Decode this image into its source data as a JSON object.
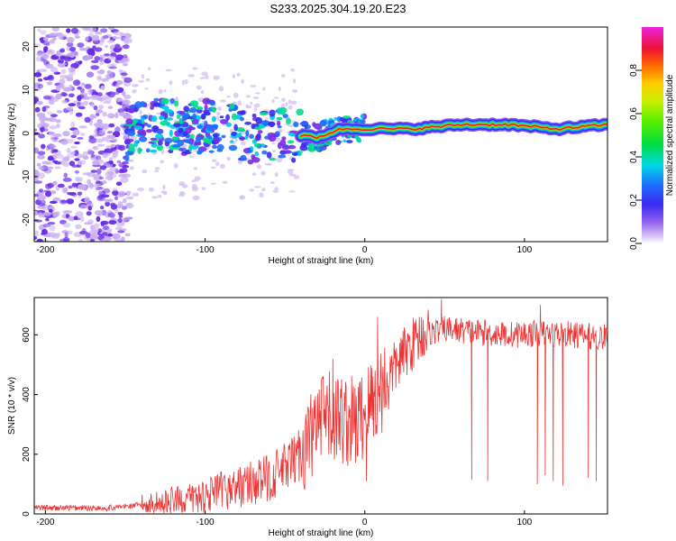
{
  "title": "S233.2025.304.19.20.E23",
  "chart_data": [
    {
      "type": "heatmap",
      "title": "S233.2025.304.19.20.E23",
      "xlabel": "Height of straight line (km)",
      "ylabel": "Frequency (Hz)",
      "xlim": [
        -207,
        152
      ],
      "ylim": [
        -25,
        24.5
      ],
      "xticks": [
        -200,
        -100,
        0,
        100
      ],
      "yticks": [
        -20,
        -10,
        0,
        10,
        20
      ],
      "colorbar": {
        "label": "Normalized spectral amplitude",
        "range": [
          0,
          1
        ],
        "ticks": [
          "0.0",
          "0.2",
          "0.4",
          "0.6",
          "0.8"
        ]
      },
      "ridge": [
        {
          "x": -150,
          "f": 0
        },
        {
          "x": -130,
          "f": 2
        },
        {
          "x": -110,
          "f": 1
        },
        {
          "x": -90,
          "f": 2
        },
        {
          "x": -70,
          "f": -1
        },
        {
          "x": -50,
          "f": 0
        },
        {
          "x": -30,
          "f": -1
        },
        {
          "x": -15,
          "f": 1
        },
        {
          "x": 0,
          "f": 1
        },
        {
          "x": 30,
          "f": 1
        },
        {
          "x": 60,
          "f": 2
        },
        {
          "x": 90,
          "f": 2
        },
        {
          "x": 120,
          "f": 1
        },
        {
          "x": 152,
          "f": 2
        }
      ]
    },
    {
      "type": "line",
      "xlabel": "Height of straight line (km)",
      "ylabel": "SNR (10 * v/v)",
      "xlim": [
        -207,
        152
      ],
      "ylim": [
        0,
        725
      ],
      "xticks": [
        -200,
        -100,
        0,
        100
      ],
      "yticks": [
        0,
        200,
        400,
        600
      ],
      "series": [
        {
          "name": "SNR",
          "color": "#ee3333",
          "trend": [
            {
              "x": -207,
              "y": 20
            },
            {
              "x": -160,
              "y": 20
            },
            {
              "x": -140,
              "y": 30
            },
            {
              "x": -110,
              "y": 50
            },
            {
              "x": -80,
              "y": 90
            },
            {
              "x": -60,
              "y": 120
            },
            {
              "x": -45,
              "y": 170
            },
            {
              "x": -35,
              "y": 250
            },
            {
              "x": -25,
              "y": 320
            },
            {
              "x": -15,
              "y": 320
            },
            {
              "x": -5,
              "y": 300
            },
            {
              "x": 5,
              "y": 380
            },
            {
              "x": 15,
              "y": 460
            },
            {
              "x": 25,
              "y": 540
            },
            {
              "x": 35,
              "y": 600
            },
            {
              "x": 50,
              "y": 620
            },
            {
              "x": 70,
              "y": 610
            },
            {
              "x": 90,
              "y": 600
            },
            {
              "x": 110,
              "y": 605
            },
            {
              "x": 130,
              "y": 600
            },
            {
              "x": 152,
              "y": 590
            }
          ],
          "dropouts": [
            {
              "x": 1,
              "y": 110
            },
            {
              "x": 67,
              "y": 115
            },
            {
              "x": 77,
              "y": 110
            },
            {
              "x": 108,
              "y": 100
            },
            {
              "x": 113,
              "y": 130
            },
            {
              "x": 118,
              "y": 110
            },
            {
              "x": 124,
              "y": 95
            },
            {
              "x": 140,
              "y": 120
            },
            {
              "x": 145,
              "y": 110
            }
          ],
          "peaks": [
            {
              "x": -20,
              "y": 520
            },
            {
              "x": 8,
              "y": 660
            },
            {
              "x": 48,
              "y": 720
            },
            {
              "x": 110,
              "y": 700
            }
          ]
        }
      ]
    }
  ]
}
